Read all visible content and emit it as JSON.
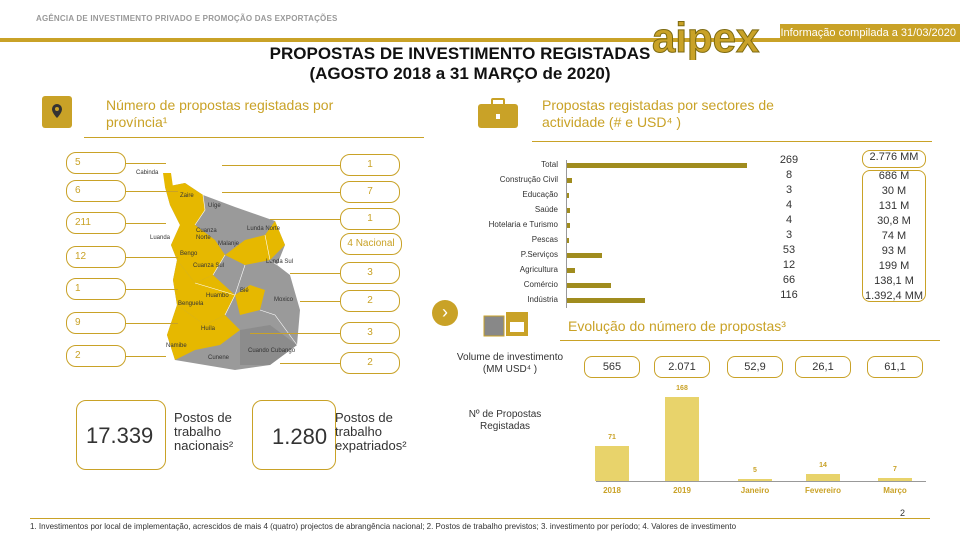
{
  "header": {
    "org": "AGÊNCIA DE INVESTIMENTO PRIVADO E PROMOÇÃO DAS EXPORTAÇÕES",
    "logo": "aipex",
    "date": "Informação compilada a 31/03/2020"
  },
  "title": {
    "line1": "PROPOSTAS DE INVESTIMENTO REGISTADAS",
    "line2": "(AGOSTO 2018 a 31 MARÇO de 2020)"
  },
  "left_section": {
    "title": "Número de propostas registadas por província¹",
    "icon": "map-pin-icon"
  },
  "right_section": {
    "title": "Propostas registadas por sectores de actividade (# e USD⁴ )",
    "icon": "briefcase-icon"
  },
  "provinces_left": [
    "5",
    "6",
    "211",
    "12",
    "1",
    "9",
    "2"
  ],
  "provinces_right": [
    "1",
    "7",
    "1",
    "4 Nacional",
    "3",
    "2",
    "3",
    "2"
  ],
  "map_labels": [
    "Cabinda",
    "Zaire",
    "Uíge",
    "Luanda",
    "Cuanza Norte",
    "Malanje",
    "Lunda Norte",
    "Bengo",
    "Cuanza Sul",
    "Lunda Sul",
    "Bié",
    "Huambo",
    "Benguela",
    "Moxico",
    "Huíla",
    "Namibe",
    "Cunene",
    "Cuando Cubango"
  ],
  "sectors": [
    {
      "label": "Total",
      "count": "269",
      "usd": "2.776 MM",
      "bar": 269
    },
    {
      "label": "Construção Civil",
      "count": "8",
      "usd": "686 M",
      "bar": 8
    },
    {
      "label": "Educação",
      "count": "3",
      "usd": "30 M",
      "bar": 3
    },
    {
      "label": "Saúde",
      "count": "4",
      "usd": "131 M",
      "bar": 4
    },
    {
      "label": "Hotelaria e Turismo",
      "count": "4",
      "usd": "30,8 M",
      "bar": 4
    },
    {
      "label": "Pescas",
      "count": "3",
      "usd": "74 M",
      "bar": 3
    },
    {
      "label": "P.Serviços",
      "count": "53",
      "usd": "93 M",
      "bar": 53
    },
    {
      "label": "Agricultura",
      "count": "12",
      "usd": "199 M",
      "bar": 12
    },
    {
      "label": "Comércio",
      "count": "66",
      "usd": "138,1 M",
      "bar": 66
    },
    {
      "label": "Indústria",
      "count": "116",
      "usd": "1.392,4 MM",
      "bar": 116
    }
  ],
  "kpis": {
    "national": {
      "value": "17.339",
      "label_1": "Postos de",
      "label_2": "trabalho",
      "label_3": "nacionais²"
    },
    "expat": {
      "value": "1.280",
      "label_1": "Postos de",
      "label_2": "trabalho",
      "label_3": "expatriados²"
    }
  },
  "evolution": {
    "title": "Evolução do número de propostas³",
    "volume_label": "Volume de investimento (MM USD⁴ )",
    "count_label": "Nº de Propostas Registadas",
    "volumes": [
      "565",
      "2.071",
      "52,9",
      "26,1",
      "61,1"
    ],
    "chart_data": {
      "type": "bar",
      "title": "Evolução do número de propostas³",
      "categories": [
        "2018",
        "2019",
        "Janeiro",
        "Fevereiro",
        "Março"
      ],
      "values": [
        71,
        168,
        5,
        14,
        7
      ],
      "labels": [
        "71",
        "168",
        "5",
        "14",
        "7"
      ],
      "ylim": [
        0,
        180
      ]
    }
  },
  "footnote": "1. Investimentos por local de implementação, acrescidos de mais 4 (quatro) projectos de abrangência nacional; 2.  Postos de trabalho previstos; 3. investimento por período; 4. Valores de investimento",
  "page_number": "2",
  "colors": {
    "accent": "#c9a227",
    "bar": "#a08c1e",
    "evo_bar": "#e8d36b"
  }
}
